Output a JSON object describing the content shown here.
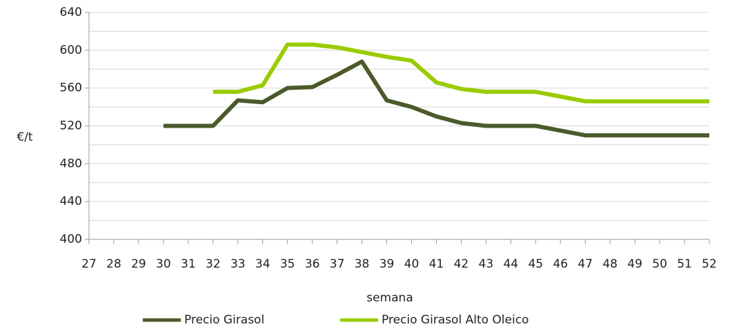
{
  "chart_data": {
    "type": "line",
    "x_label": "semana",
    "y_label": "€/t",
    "categories": [
      "27",
      "28",
      "29",
      "30",
      "31",
      "32",
      "33",
      "34",
      "35",
      "36",
      "37",
      "38",
      "39",
      "40",
      "41",
      "42",
      "43",
      "44",
      "45",
      "46",
      "47",
      "48",
      "49",
      "50",
      "51",
      "52"
    ],
    "series": [
      {
        "name": "Precio Girasol",
        "color": "#4b5a2b",
        "values": [
          null,
          null,
          null,
          520,
          520,
          520,
          547,
          545,
          560,
          561,
          574,
          588,
          547,
          540,
          530,
          523,
          520,
          520,
          520,
          515,
          510,
          510,
          510,
          510,
          510,
          510
        ]
      },
      {
        "name": "Precio Girasol Alto Oleico",
        "color": "#99cc00",
        "values": [
          null,
          null,
          null,
          null,
          null,
          556,
          556,
          563,
          606,
          606,
          603,
          598,
          593,
          589,
          566,
          559,
          556,
          556,
          556,
          551,
          546,
          546,
          546,
          546,
          546,
          546
        ]
      }
    ],
    "ylim": [
      400,
      640
    ],
    "yticks": [
      400,
      440,
      480,
      520,
      560,
      600,
      640
    ],
    "yminorticks": [
      420,
      460,
      500,
      540,
      580,
      620
    ],
    "grid": true,
    "legend": "bottom"
  }
}
